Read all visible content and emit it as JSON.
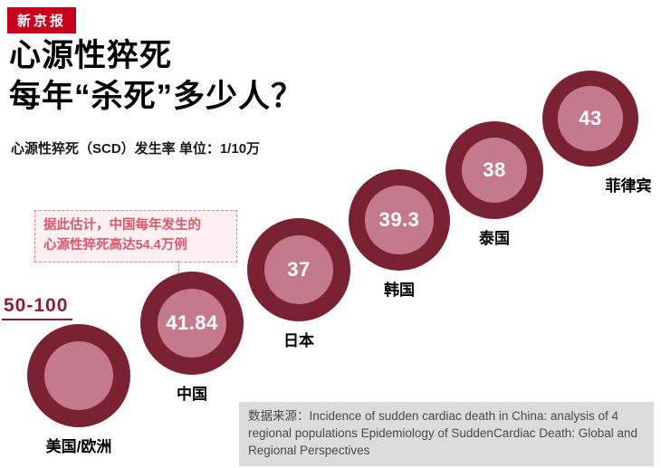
{
  "brand": {
    "badge_text": "新京报"
  },
  "header": {
    "title_line1": "心源性猝死",
    "title_line2": "每年“杀死”多少人？",
    "subtitle": "心源性猝死（SCD）发生率  单位：1/10万"
  },
  "annotation": {
    "line1": "据此估计，中国每年发生的",
    "line2": "心源性猝死高达54.4万例"
  },
  "bubbles": [
    {
      "label": "美国/欧洲",
      "value": "",
      "outside_value": "50-100"
    },
    {
      "label": "中国",
      "value": "41.84"
    },
    {
      "label": "日本",
      "value": "37"
    },
    {
      "label": "韩国",
      "value": "39.3"
    },
    {
      "label": "泰国",
      "value": "38"
    },
    {
      "label": "菲律宾",
      "value": "43"
    }
  ],
  "source": {
    "text": "数据来源：Incidence of sudden cardiac death in China: analysis of 4 regional populations Epidemiology of SuddenCardiac Death: Global and Regional Perspectives"
  },
  "colors": {
    "brand_red": "#c8001e",
    "ring_outer": "#7a2232",
    "ring_inner": "#c47a8c",
    "accent_text": "#8b2034",
    "annotation_red": "#e0566a",
    "source_bg": "#dcdcdc"
  },
  "chart_data": {
    "type": "scatter",
    "title": "心源性猝死 每年“杀死”多少人？",
    "subtitle": "心源性猝死（SCD）发生率",
    "ylabel": "发生率",
    "unit": "1/10万",
    "categories": [
      "美国/欧洲",
      "中国",
      "日本",
      "韩国",
      "泰国",
      "菲律宾"
    ],
    "values": [
      "50-100",
      41.84,
      37,
      39.3,
      38,
      43
    ],
    "annotation": "据此估计，中国每年发生的心源性猝死高达54.4万例",
    "legend_position": "none",
    "grid": false,
    "source": "数据来源：Incidence of sudden cardiac death in China: analysis of 4 regional populations Epidemiology of SuddenCardiac Death: Global and Regional Perspectives"
  }
}
